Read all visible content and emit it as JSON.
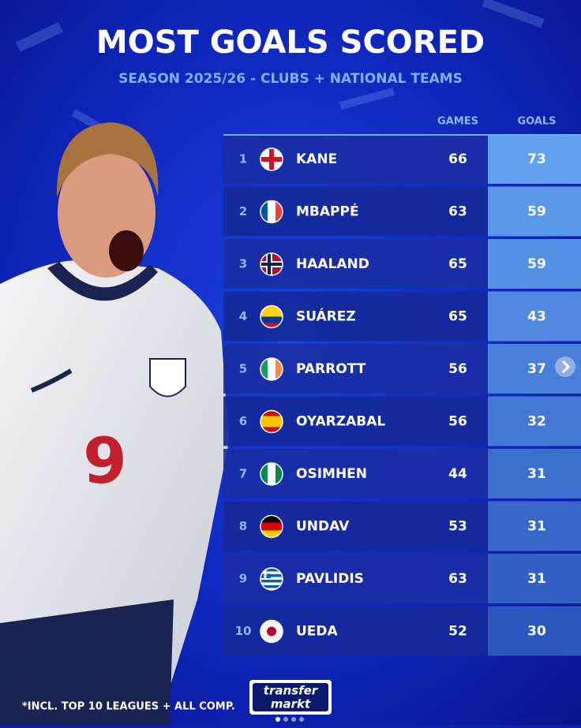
{
  "header": {
    "title": "MOST GOALS SCORED",
    "subtitle": "SEASON 2025/26 - CLUBS + NATIONAL TEAMS"
  },
  "table": {
    "columns": [
      "GAMES",
      "GOALS"
    ],
    "rows": [
      [
        1,
        "KANE",
        66,
        73
      ],
      [
        2,
        "MBAPPÉ",
        63,
        59
      ],
      [
        3,
        "HAALAND",
        65,
        59
      ],
      [
        4,
        "SUÁREZ",
        65,
        43
      ],
      [
        5,
        "PARROTT",
        56,
        37
      ],
      [
        6,
        "OYARZABAL",
        56,
        32
      ],
      [
        7,
        "OSIMHEN",
        44,
        31
      ],
      [
        8,
        "UNDAV",
        53,
        31
      ],
      [
        9,
        "PAVLIDIS",
        63,
        31
      ],
      [
        10,
        "UEDA",
        52,
        30
      ]
    ]
  },
  "footer": {
    "note": "*INCL. TOP 10 LEAGUES + ALL COMP.",
    "logo_top": "transfer",
    "logo_bottom": "markt"
  }
}
